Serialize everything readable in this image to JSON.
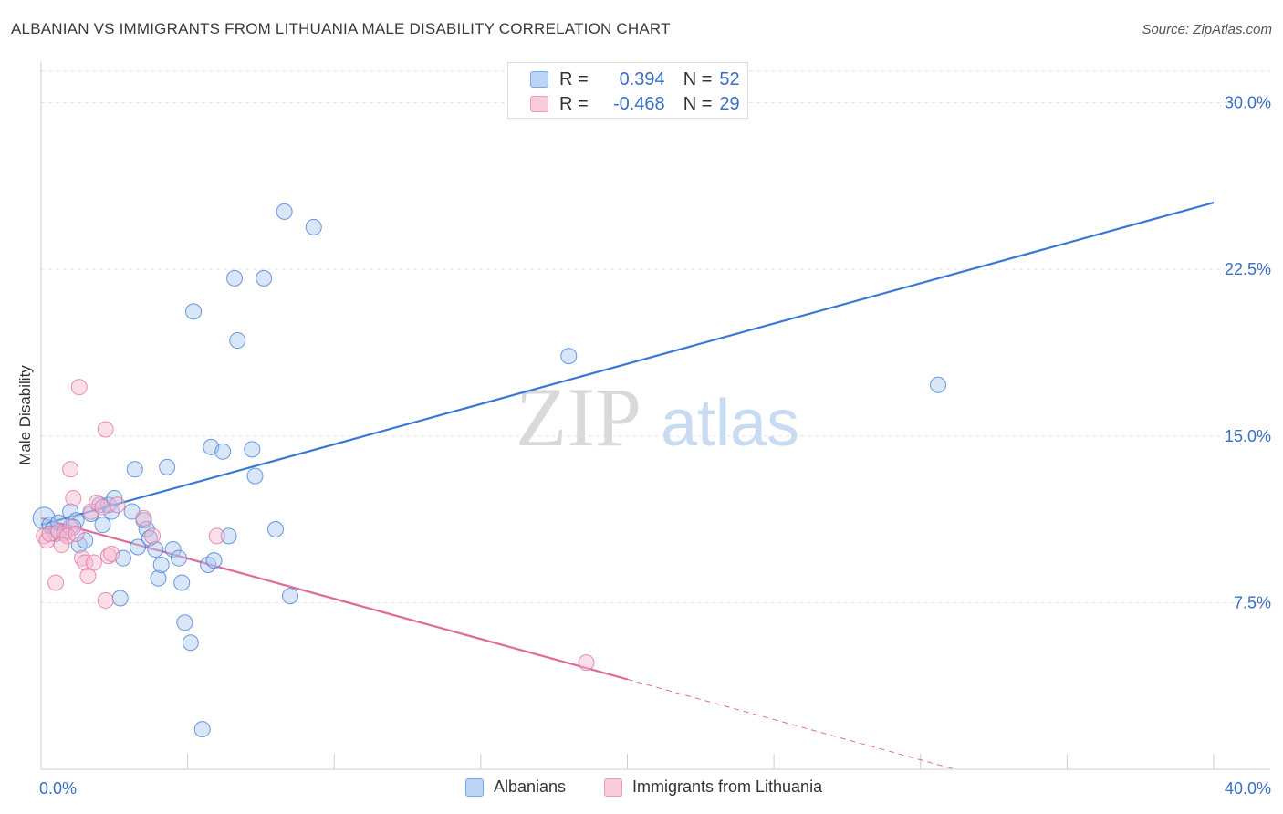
{
  "title": "ALBANIAN VS IMMIGRANTS FROM LITHUANIA MALE DISABILITY CORRELATION CHART",
  "source": "Source: ZipAtlas.com",
  "watermark": {
    "zip": "ZIP",
    "atlas": "atlas"
  },
  "legend": {
    "r_label": "R =",
    "n_label": "N =",
    "rows": [
      {
        "r": "0.394",
        "n": "52"
      },
      {
        "r": "-0.468",
        "n": "29"
      }
    ]
  },
  "colors": {
    "blue": "#3a78d6",
    "blue_fill": "#a9c8f0",
    "pink": "#e06b99",
    "pink_fill": "#f5b8cf",
    "grid": "#e6e6e6",
    "tick_text": "#3a6fc4"
  },
  "chart_data": {
    "type": "scatter",
    "title": "ALBANIAN VS IMMIGRANTS FROM LITHUANIA MALE DISABILITY CORRELATION CHART",
    "xlabel": "",
    "ylabel": "Male Disability",
    "xlim": [
      0,
      40
    ],
    "ylim": [
      0,
      31.5
    ],
    "x_tick_labels": [
      "0.0%",
      "40.0%"
    ],
    "y_ticks": [
      7.5,
      15.0,
      22.5,
      30.0
    ],
    "y_tick_labels": [
      "7.5%",
      "15.0%",
      "22.5%",
      "30.0%"
    ],
    "grid": true,
    "legend_position": "top-center",
    "series": [
      {
        "name": "Albanians",
        "color": "#3a78d6",
        "r": 0.394,
        "n": 52,
        "trend": {
          "x0": 0,
          "y0": 11.0,
          "x1": 40,
          "y1": 25.5,
          "solid_to": 40
        },
        "points": [
          [
            0.1,
            11.3
          ],
          [
            0.3,
            11.0
          ],
          [
            0.4,
            10.8
          ],
          [
            0.5,
            10.6
          ],
          [
            0.6,
            11.1
          ],
          [
            0.8,
            10.7
          ],
          [
            1.0,
            11.6
          ],
          [
            1.2,
            11.2
          ],
          [
            1.3,
            10.1
          ],
          [
            1.5,
            10.3
          ],
          [
            1.7,
            11.5
          ],
          [
            2.0,
            11.9
          ],
          [
            2.1,
            11.0
          ],
          [
            2.3,
            11.9
          ],
          [
            2.5,
            12.2
          ],
          [
            2.7,
            7.7
          ],
          [
            2.8,
            9.5
          ],
          [
            3.1,
            11.6
          ],
          [
            3.2,
            13.5
          ],
          [
            3.3,
            10.0
          ],
          [
            3.5,
            11.2
          ],
          [
            3.6,
            10.8
          ],
          [
            3.7,
            10.4
          ],
          [
            3.9,
            9.9
          ],
          [
            4.0,
            8.6
          ],
          [
            4.1,
            9.2
          ],
          [
            4.3,
            13.6
          ],
          [
            4.5,
            9.9
          ],
          [
            4.7,
            9.5
          ],
          [
            4.8,
            8.4
          ],
          [
            4.9,
            6.6
          ],
          [
            5.1,
            5.7
          ],
          [
            5.2,
            20.6
          ],
          [
            5.5,
            1.8
          ],
          [
            5.7,
            9.2
          ],
          [
            5.8,
            14.5
          ],
          [
            5.9,
            9.4
          ],
          [
            6.2,
            14.3
          ],
          [
            6.4,
            10.5
          ],
          [
            6.6,
            22.1
          ],
          [
            6.7,
            19.3
          ],
          [
            7.2,
            14.4
          ],
          [
            7.3,
            13.2
          ],
          [
            7.6,
            22.1
          ],
          [
            8.0,
            10.8
          ],
          [
            8.5,
            7.8
          ],
          [
            8.3,
            25.1
          ],
          [
            9.3,
            24.4
          ],
          [
            18.0,
            18.6
          ],
          [
            30.6,
            17.3
          ],
          [
            1.1,
            10.9
          ],
          [
            2.4,
            11.6
          ]
        ]
      },
      {
        "name": "Immigrants from Lithuania",
        "color": "#e06b99",
        "r": -0.468,
        "n": 29,
        "trend": {
          "x0": 0,
          "y0": 11.3,
          "x1": 40,
          "y1": -3.2,
          "solid_to": 20
        },
        "points": [
          [
            0.1,
            10.5
          ],
          [
            0.2,
            10.3
          ],
          [
            0.3,
            10.6
          ],
          [
            0.5,
            8.4
          ],
          [
            0.6,
            10.7
          ],
          [
            0.8,
            10.6
          ],
          [
            1.0,
            10.9
          ],
          [
            0.9,
            10.5
          ],
          [
            1.0,
            13.5
          ],
          [
            1.1,
            12.2
          ],
          [
            1.2,
            10.6
          ],
          [
            1.3,
            17.2
          ],
          [
            1.4,
            9.5
          ],
          [
            1.5,
            9.3
          ],
          [
            1.6,
            8.7
          ],
          [
            1.7,
            11.6
          ],
          [
            1.8,
            9.3
          ],
          [
            1.9,
            12.0
          ],
          [
            2.1,
            11.8
          ],
          [
            2.2,
            7.6
          ],
          [
            2.2,
            15.3
          ],
          [
            2.3,
            9.6
          ],
          [
            2.6,
            11.9
          ],
          [
            3.5,
            11.3
          ],
          [
            3.8,
            10.5
          ],
          [
            6.0,
            10.5
          ],
          [
            18.6,
            4.8
          ],
          [
            2.4,
            9.7
          ],
          [
            0.7,
            10.1
          ]
        ]
      }
    ]
  },
  "bottom_legend": [
    "Albanians",
    "Immigrants from Lithuania"
  ]
}
